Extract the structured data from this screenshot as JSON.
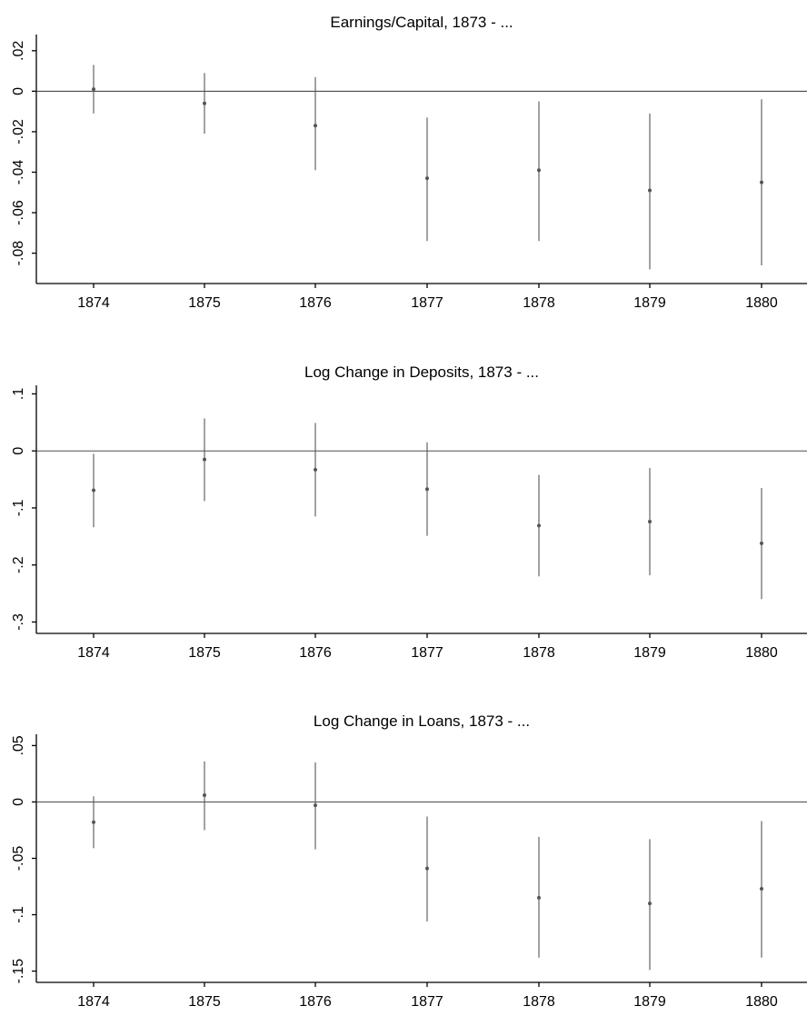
{
  "chart_data": [
    {
      "type": "scatter",
      "title": "Earnings/Capital, 1873 - ...",
      "categories": [
        "1874",
        "1875",
        "1876",
        "1877",
        "1878",
        "1879",
        "1880"
      ],
      "ylim": [
        -0.095,
        0.028
      ],
      "y_ticks": [
        0.02,
        0,
        -0.02,
        -0.04,
        -0.06,
        -0.08
      ],
      "y_tick_labels": [
        ".02",
        "0",
        "-.02",
        "-.04",
        "-.06",
        "-.08"
      ],
      "reference_line": 0,
      "series": [
        {
          "estimates": [
            0.001,
            -0.006,
            -0.017,
            -0.043,
            -0.039,
            -0.049,
            -0.045
          ],
          "ci_lower": [
            -0.011,
            -0.021,
            -0.039,
            -0.074,
            -0.074,
            -0.088,
            -0.086
          ],
          "ci_upper": [
            0.013,
            0.009,
            0.007,
            -0.013,
            -0.005,
            -0.011,
            -0.004
          ]
        }
      ]
    },
    {
      "type": "scatter",
      "title": "Log Change in Deposits, 1873 - ...",
      "categories": [
        "1874",
        "1875",
        "1876",
        "1877",
        "1878",
        "1879",
        "1880"
      ],
      "ylim": [
        -0.32,
        0.115
      ],
      "y_ticks": [
        0.1,
        0,
        -0.1,
        -0.2,
        -0.3
      ],
      "y_tick_labels": [
        ".1",
        "0",
        "-.1",
        "-.2",
        "-.3"
      ],
      "reference_line": 0,
      "series": [
        {
          "estimates": [
            -0.069,
            -0.015,
            -0.033,
            -0.067,
            -0.131,
            -0.124,
            -0.162
          ],
          "ci_lower": [
            -0.134,
            -0.088,
            -0.115,
            -0.149,
            -0.22,
            -0.218,
            -0.26
          ],
          "ci_upper": [
            -0.005,
            0.057,
            0.049,
            0.015,
            -0.042,
            -0.03,
            -0.065
          ]
        }
      ]
    },
    {
      "type": "scatter",
      "title": "Log Change in Loans, 1873 - ...",
      "categories": [
        "1874",
        "1875",
        "1876",
        "1877",
        "1878",
        "1879",
        "1880"
      ],
      "ylim": [
        -0.16,
        0.06
      ],
      "y_ticks": [
        0.05,
        0,
        -0.05,
        -0.1,
        -0.15
      ],
      "y_tick_labels": [
        ".05",
        "0",
        "-.05",
        "-.1",
        "-.15"
      ],
      "reference_line": 0,
      "series": [
        {
          "estimates": [
            -0.018,
            0.006,
            -0.003,
            -0.059,
            -0.085,
            -0.09,
            -0.077
          ],
          "ci_lower": [
            -0.041,
            -0.025,
            -0.042,
            -0.106,
            -0.138,
            -0.149,
            -0.138
          ],
          "ci_upper": [
            0.005,
            0.036,
            0.035,
            -0.013,
            -0.031,
            -0.033,
            -0.017
          ]
        }
      ]
    }
  ]
}
